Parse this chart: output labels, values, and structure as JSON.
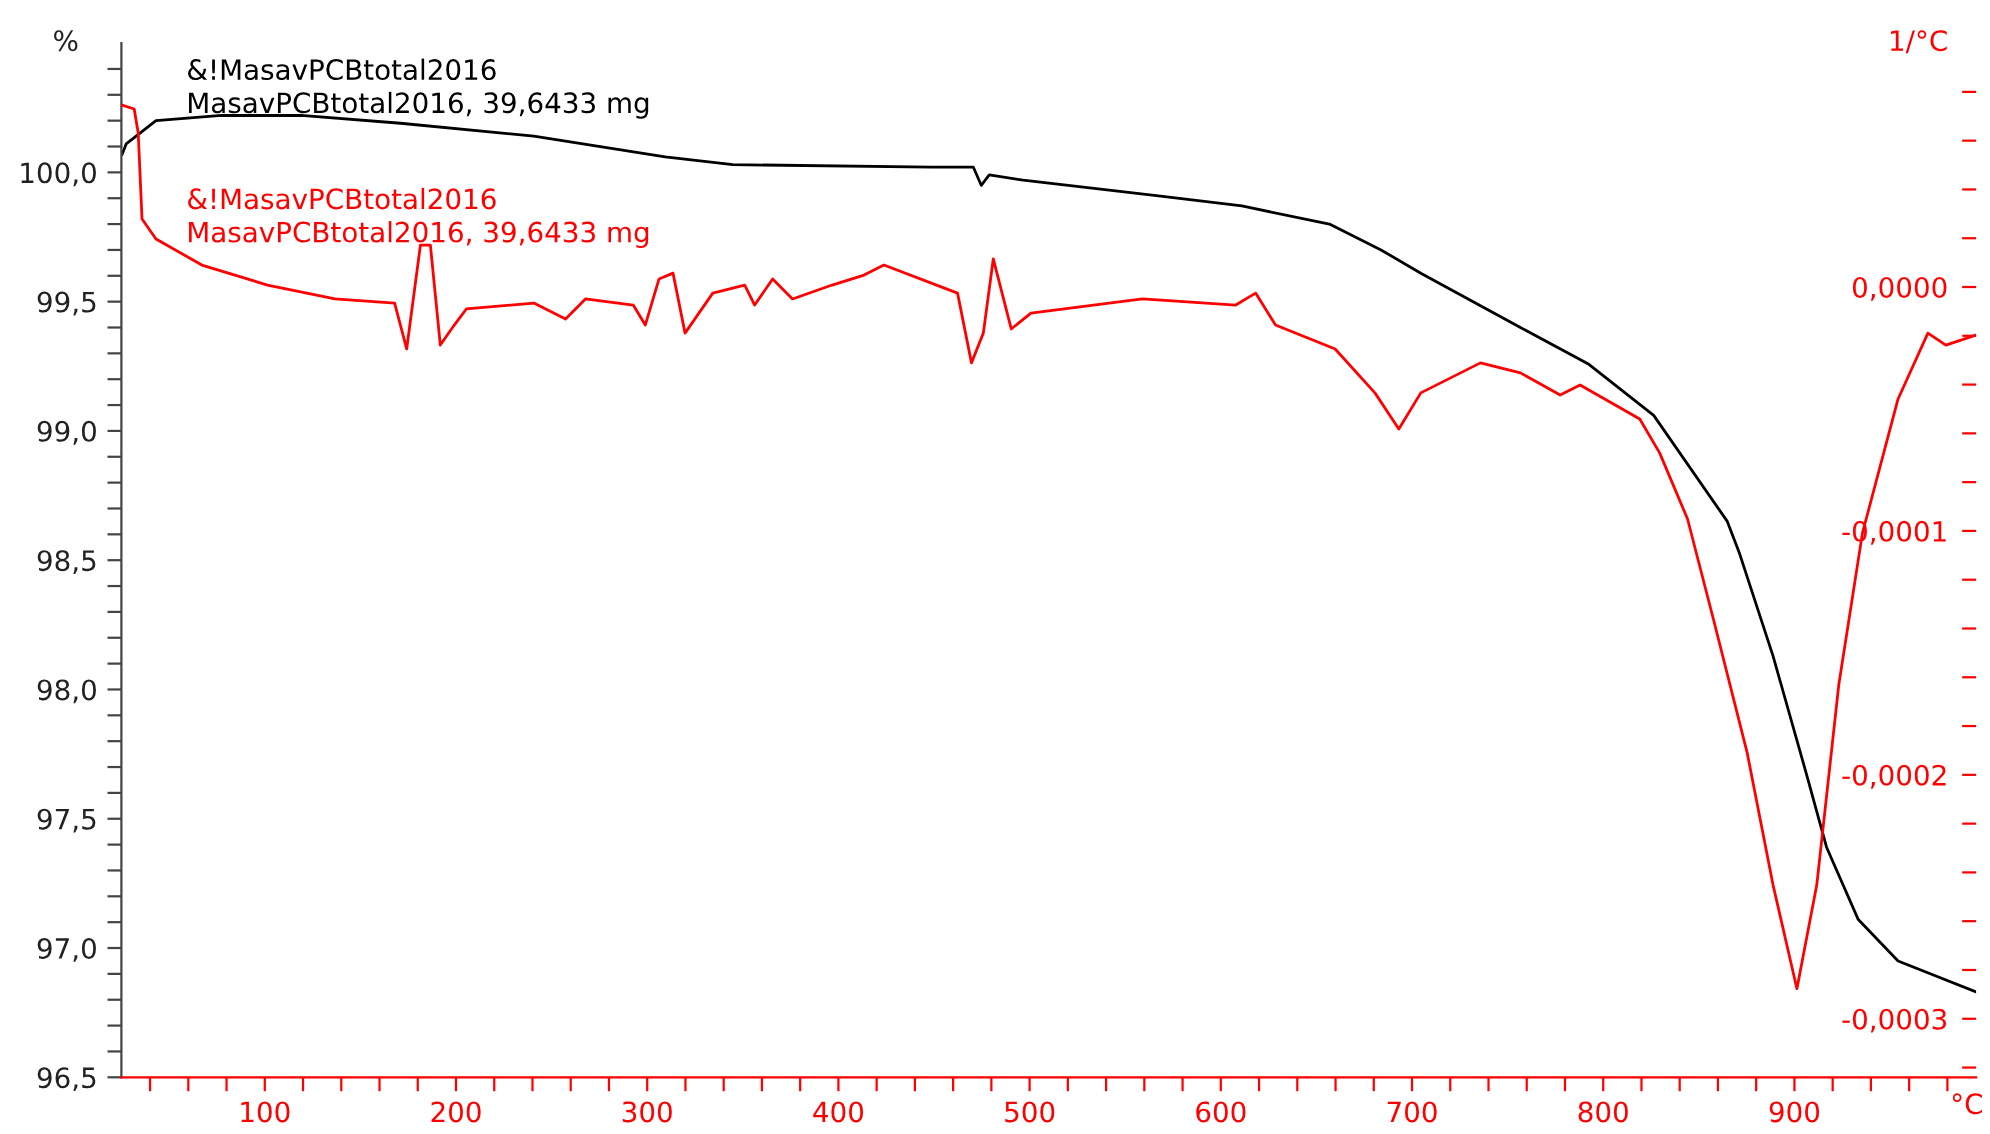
{
  "chart_data": {
    "type": "line",
    "xlabel": "°C",
    "ylabel": "%",
    "y2label": "1/°C",
    "xlim": [
      25,
      995
    ],
    "ylim": [
      96.5,
      100.5
    ],
    "y2lim": [
      -0.000324,
      0.0001
    ],
    "xticks": [
      {
        "value": 40,
        "label": null
      },
      {
        "value": 60,
        "label": null
      },
      {
        "value": 80,
        "label": null
      },
      100,
      {
        "value": 120,
        "label": null
      },
      {
        "value": 140,
        "label": null
      },
      {
        "value": 160,
        "label": null
      },
      {
        "value": 180,
        "label": null
      },
      200,
      {
        "value": 220,
        "label": null
      },
      {
        "value": 240,
        "label": null
      },
      {
        "value": 260,
        "label": null
      },
      {
        "value": 280,
        "label": null
      },
      300,
      {
        "value": 320,
        "label": null
      },
      {
        "value": 340,
        "label": null
      },
      {
        "value": 360,
        "label": null
      },
      {
        "value": 380,
        "label": null
      },
      400,
      {
        "value": 420,
        "label": null
      },
      {
        "value": 440,
        "label": null
      },
      {
        "value": 460,
        "label": null
      },
      {
        "value": 480,
        "label": null
      },
      500,
      {
        "value": 520,
        "label": null
      },
      {
        "value": 540,
        "label": null
      },
      {
        "value": 560,
        "label": null
      },
      {
        "value": 580,
        "label": null
      },
      600,
      {
        "value": 620,
        "label": null
      },
      {
        "value": 640,
        "label": null
      },
      {
        "value": 660,
        "label": null
      },
      {
        "value": 680,
        "label": null
      },
      700,
      {
        "value": 720,
        "label": null
      },
      {
        "value": 740,
        "label": null
      },
      {
        "value": 760,
        "label": null
      },
      {
        "value": 780,
        "label": null
      },
      800,
      {
        "value": 820,
        "label": null
      },
      {
        "value": 840,
        "label": null
      },
      {
        "value": 860,
        "label": null
      },
      {
        "value": 880,
        "label": null
      },
      900,
      {
        "value": 920,
        "label": null
      },
      {
        "value": 940,
        "label": null
      },
      {
        "value": 960,
        "label": null
      },
      {
        "value": 980,
        "label": null
      }
    ],
    "yticks": [
      {
        "value": 96.5,
        "label": "96,5"
      },
      {
        "value": 96.6,
        "label": null
      },
      {
        "value": 96.7,
        "label": null
      },
      {
        "value": 96.8,
        "label": null
      },
      {
        "value": 96.9,
        "label": null
      },
      {
        "value": 97.0,
        "label": "97,0"
      },
      {
        "value": 97.1,
        "label": null
      },
      {
        "value": 97.2,
        "label": null
      },
      {
        "value": 97.3,
        "label": null
      },
      {
        "value": 97.4,
        "label": null
      },
      {
        "value": 97.5,
        "label": "97,5"
      },
      {
        "value": 97.6,
        "label": null
      },
      {
        "value": 97.7,
        "label": null
      },
      {
        "value": 97.8,
        "label": null
      },
      {
        "value": 97.9,
        "label": null
      },
      {
        "value": 98.0,
        "label": "98,0"
      },
      {
        "value": 98.1,
        "label": null
      },
      {
        "value": 98.2,
        "label": null
      },
      {
        "value": 98.3,
        "label": null
      },
      {
        "value": 98.4,
        "label": null
      },
      {
        "value": 98.5,
        "label": "98,5"
      },
      {
        "value": 98.6,
        "label": null
      },
      {
        "value": 98.7,
        "label": null
      },
      {
        "value": 98.8,
        "label": null
      },
      {
        "value": 98.9,
        "label": null
      },
      {
        "value": 99.0,
        "label": "99,0"
      },
      {
        "value": 99.1,
        "label": null
      },
      {
        "value": 99.2,
        "label": null
      },
      {
        "value": 99.3,
        "label": null
      },
      {
        "value": 99.4,
        "label": null
      },
      {
        "value": 99.5,
        "label": "99,5"
      },
      {
        "value": 99.6,
        "label": null
      },
      {
        "value": 99.7,
        "label": null
      },
      {
        "value": 99.8,
        "label": null
      },
      {
        "value": 99.9,
        "label": null
      },
      {
        "value": 100.0,
        "label": "100,0"
      },
      {
        "value": 100.1,
        "label": null
      },
      {
        "value": 100.2,
        "label": null
      },
      {
        "value": 100.3,
        "label": null
      },
      {
        "value": 100.4,
        "label": null
      }
    ],
    "y2ticks": [
      {
        "value": -0.00032,
        "label": null
      },
      {
        "value": -0.0003,
        "label": "-0,0003"
      },
      {
        "value": -0.00028,
        "label": null
      },
      {
        "value": -0.00026,
        "label": null
      },
      {
        "value": -0.00024,
        "label": null
      },
      {
        "value": -0.00022,
        "label": null
      },
      {
        "value": -0.0002,
        "label": "-0,0002"
      },
      {
        "value": -0.00018,
        "label": null
      },
      {
        "value": -0.00016,
        "label": null
      },
      {
        "value": -0.00014,
        "label": null
      },
      {
        "value": -0.00012,
        "label": null
      },
      {
        "value": -0.0001,
        "label": "-0,0001"
      },
      {
        "value": -8e-05,
        "label": null
      },
      {
        "value": -6e-05,
        "label": null
      },
      {
        "value": -4e-05,
        "label": null
      },
      {
        "value": -2e-05,
        "label": null
      },
      {
        "value": 0.0,
        "label": "0,0000"
      },
      {
        "value": 2e-05,
        "label": null
      },
      {
        "value": 4e-05,
        "label": null
      },
      {
        "value": 6e-05,
        "label": null
      },
      {
        "value": 8e-05,
        "label": null
      }
    ],
    "grid": false,
    "legend": false,
    "marker": "none",
    "line_style": "solid",
    "series": [
      {
        "name": "&!MasavPCBtotal2016\nMasavPCBtotal2016, 39,6433 mg",
        "color": "#000000",
        "axis": "y",
        "x": [
          25.4,
          27.5,
          43.1,
          77.4,
          119.0,
          171.0,
          240.7,
          309.4,
          344.7,
          448.7,
          470.6,
          474.7,
          478.9,
          496.6,
          566.3,
          611.0,
          656.8,
          683.8,
          704.6,
          756.7,
          792.0,
          826.4,
          864.9,
          871.1,
          888.8,
          906.4,
          916.8,
          933.4,
          954.2,
          995
        ],
        "values": [
          100.07,
          100.11,
          100.2,
          100.22,
          100.22,
          100.19,
          100.14,
          100.06,
          100.03,
          100.02,
          100.02,
          99.95,
          99.99,
          99.97,
          99.91,
          99.87,
          99.8,
          99.7,
          99.61,
          99.4,
          99.26,
          99.06,
          98.65,
          98.53,
          98.13,
          97.67,
          97.39,
          97.11,
          96.95,
          96.83
        ]
      },
      {
        "name": "&!MasavPCBtotal2016\nMasavPCBtotal2016, 39,6433 mg",
        "color": "#ff0000",
        "axis": "y2",
        "x": [
          25.4,
          31.7,
          33.8,
          35.8,
          43.1,
          67.1,
          101.4,
          136.7,
          167.9,
          174.2,
          181.4,
          186.6,
          191.8,
          199.1,
          205.4,
          240.7,
          257.3,
          267.7,
          292.7,
          299.0,
          306.2,
          313.5,
          319.8,
          334.3,
          351.0,
          356.2,
          365.6,
          376.0,
          396.7,
          413.4,
          423.8,
          462.3,
          469.6,
          475.8,
          481.0,
          490.4,
          500.7,
          559.0,
          607.8,
          618.2,
          628.6,
          659.8,
          680.6,
          693.1,
          704.6,
          735.8,
          756.7,
          777.5,
          787.9,
          819.1,
          829.5,
          844.1,
          857.6,
          875.3,
          888.8,
          901.3,
          911.7,
          923.2,
          935.6,
          954.2,
          969.8,
          979.2,
          995
        ],
        "values": [
          7.46e-05,
          7.3e-05,
          6.31e-05,
          2.79e-05,
          1.97e-05,
          9e-06,
          8e-07,
          -4.9e-06,
          -6.6e-06,
          -2.54e-05,
          1.72e-05,
          1.72e-05,
          -2.38e-05,
          -1.56e-05,
          -9e-06,
          -6.6e-06,
          -1.31e-05,
          -4.9e-06,
          -7.4e-06,
          -1.56e-05,
          3.3e-06,
          5.7e-06,
          -1.89e-05,
          -2.5e-06,
          8e-07,
          -7.4e-06,
          3.3e-06,
          -4.9e-06,
          8e-07,
          4.9e-06,
          9e-06,
          -2.5e-06,
          -3.11e-05,
          -1.89e-05,
          1.15e-05,
          -1.72e-05,
          -1.07e-05,
          -4.9e-06,
          -7.4e-06,
          -2.5e-06,
          -1.56e-05,
          -2.54e-05,
          -4.34e-05,
          -5.82e-05,
          -4.34e-05,
          -3.11e-05,
          -3.52e-05,
          -4.43e-05,
          -4.02e-05,
          -5.41e-05,
          -6.8e-05,
          -9.51e-05,
          -0.0001361,
          -0.000191,
          -0.0002451,
          -0.0002877,
          -0.0002451,
          -0.0001631,
          -0.0001008,
          -4.59e-05,
          -1.89e-05,
          -2.38e-05,
          -1.97e-05
        ]
      }
    ]
  }
}
